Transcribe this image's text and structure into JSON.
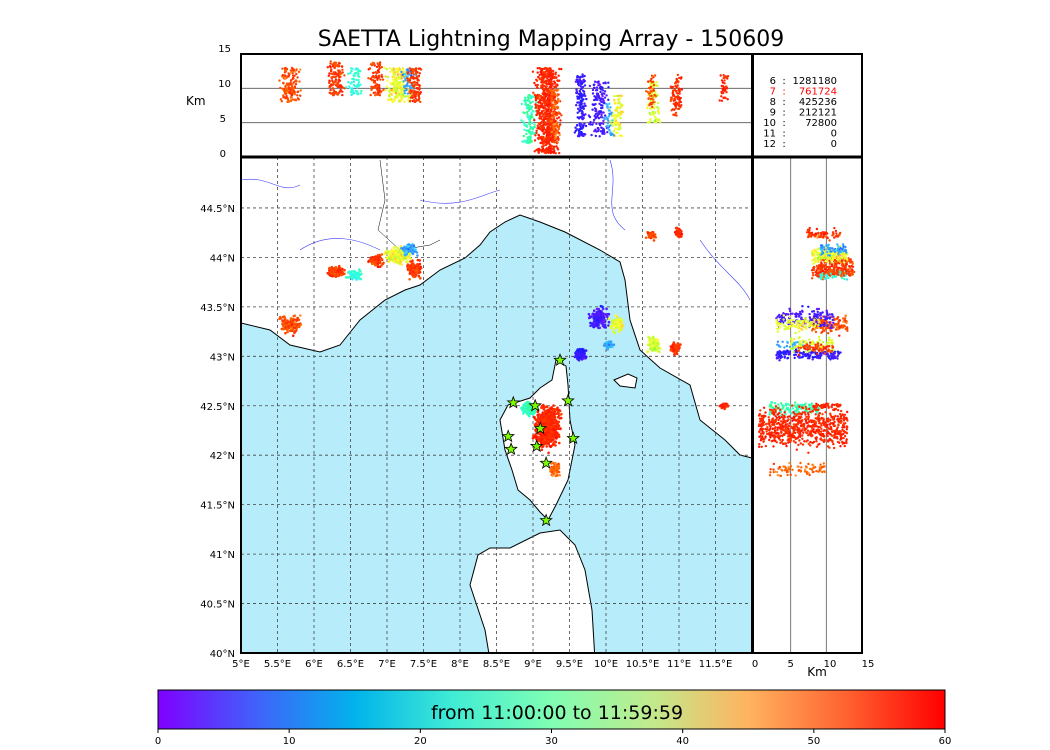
{
  "chart_data": {
    "type": "scatter",
    "title": "SAETTA Lightning Mapping Array - 150609",
    "time_range_label": "from 11:00:00 to 11:59:59",
    "colorbar": {
      "min": 0,
      "max": 60,
      "ticks": [
        "0",
        "10",
        "20",
        "30",
        "40",
        "50",
        "60"
      ]
    },
    "map": {
      "lon_range": [
        5,
        12
      ],
      "lat_range": [
        40,
        45
      ],
      "lon_ticks": [
        {
          "v": 5,
          "l": "5°E"
        },
        {
          "v": 5.5,
          "l": "5.5°E"
        },
        {
          "v": 6,
          "l": "6°E"
        },
        {
          "v": 6.5,
          "l": "6.5°E"
        },
        {
          "v": 7,
          "l": "7°E"
        },
        {
          "v": 7.5,
          "l": "7.5°E"
        },
        {
          "v": 8,
          "l": "8°E"
        },
        {
          "v": 8.5,
          "l": "8.5°E"
        },
        {
          "v": 9,
          "l": "9°E"
        },
        {
          "v": 9.5,
          "l": "9.5°E"
        },
        {
          "v": 10,
          "l": "10°E"
        },
        {
          "v": 10.5,
          "l": "10.5°E"
        },
        {
          "v": 11,
          "l": "11°E"
        },
        {
          "v": 11.5,
          "l": "11.5°E"
        }
      ],
      "lat_ticks": [
        {
          "v": 40,
          "l": "40°N"
        },
        {
          "v": 40.5,
          "l": "40.5°N"
        },
        {
          "v": 41,
          "l": "41°N"
        },
        {
          "v": 41.5,
          "l": "41.5°N"
        },
        {
          "v": 42,
          "l": "42°N"
        },
        {
          "v": 42.5,
          "l": "42.5°N"
        },
        {
          "v": 43,
          "l": "43°N"
        },
        {
          "v": 43.5,
          "l": "43.5°N"
        },
        {
          "v": 44,
          "l": "44°N"
        },
        {
          "v": 44.5,
          "l": "44.5°N"
        }
      ],
      "sea_color": "#b7edfb"
    },
    "altitude_axis": {
      "label": "Km",
      "range": [
        0,
        15
      ],
      "ticks": [
        "0",
        "5",
        "10",
        "15"
      ]
    },
    "station_counts": [
      {
        "n": "6",
        "count": "1281180",
        "highlight": false
      },
      {
        "n": "7",
        "count": "761724",
        "highlight": true
      },
      {
        "n": "8",
        "count": "425236",
        "highlight": false
      },
      {
        "n": "9",
        "count": "212121",
        "highlight": false
      },
      {
        "n": "10",
        "count": "72800",
        "highlight": false
      },
      {
        "n": "11",
        "count": "0",
        "highlight": false
      },
      {
        "n": "12",
        "count": "0",
        "highlight": false
      }
    ],
    "stations": [
      [
        9.37,
        42.96
      ],
      [
        8.73,
        42.53
      ],
      [
        9.03,
        42.5
      ],
      [
        9.48,
        42.55
      ],
      [
        8.66,
        42.19
      ],
      [
        9.1,
        42.27
      ],
      [
        8.7,
        42.06
      ],
      [
        9.05,
        42.09
      ],
      [
        9.55,
        42.17
      ],
      [
        9.18,
        41.92
      ],
      [
        9.18,
        41.34
      ]
    ],
    "clusters": [
      {
        "lon": 5.67,
        "lat": 43.32,
        "slon": 0.12,
        "slat": 0.08,
        "t": 56,
        "dt": 4,
        "alt": [
          8,
          13
        ],
        "n": 150
      },
      {
        "lon": 6.3,
        "lat": 43.85,
        "slon": 0.1,
        "slat": 0.05,
        "t": 57,
        "dt": 3,
        "alt": [
          9,
          14
        ],
        "n": 120
      },
      {
        "lon": 6.55,
        "lat": 43.82,
        "slon": 0.1,
        "slat": 0.05,
        "t": 22,
        "dt": 6,
        "alt": [
          9,
          13
        ],
        "n": 60
      },
      {
        "lon": 6.85,
        "lat": 43.97,
        "slon": 0.1,
        "slat": 0.05,
        "t": 57,
        "dt": 3,
        "alt": [
          9,
          14
        ],
        "n": 90
      },
      {
        "lon": 7.15,
        "lat": 44.02,
        "slon": 0.15,
        "slat": 0.07,
        "t": 46,
        "dt": 8,
        "alt": [
          8,
          13
        ],
        "n": 200
      },
      {
        "lon": 7.3,
        "lat": 44.08,
        "slon": 0.1,
        "slat": 0.05,
        "t": 14,
        "dt": 6,
        "alt": [
          9,
          13
        ],
        "n": 60
      },
      {
        "lon": 7.38,
        "lat": 43.88,
        "slon": 0.08,
        "slat": 0.08,
        "t": 57,
        "dt": 3,
        "alt": [
          8,
          13
        ],
        "n": 120
      },
      {
        "lon": 8.95,
        "lat": 42.47,
        "slon": 0.08,
        "slat": 0.06,
        "t": 25,
        "dt": 6,
        "alt": [
          2,
          9
        ],
        "n": 120
      },
      {
        "lon": 9.2,
        "lat": 42.28,
        "slon": 0.15,
        "slat": 0.18,
        "t": 58,
        "dt": 2,
        "alt": [
          0.5,
          13
        ],
        "n": 700
      },
      {
        "lon": 9.3,
        "lat": 41.85,
        "slon": 0.06,
        "slat": 0.06,
        "t": 55,
        "dt": 3,
        "alt": [
          2,
          10
        ],
        "n": 80
      },
      {
        "lon": 9.65,
        "lat": 43.02,
        "slon": 0.07,
        "slat": 0.05,
        "t": 5,
        "dt": 4,
        "alt": [
          3,
          12
        ],
        "n": 150
      },
      {
        "lon": 9.92,
        "lat": 43.38,
        "slon": 0.12,
        "slat": 0.1,
        "t": 4,
        "dt": 4,
        "alt": [
          3,
          11
        ],
        "n": 140
      },
      {
        "lon": 10.15,
        "lat": 43.32,
        "slon": 0.1,
        "slat": 0.07,
        "t": 46,
        "dt": 6,
        "alt": [
          3,
          9
        ],
        "n": 90
      },
      {
        "lon": 10.05,
        "lat": 43.12,
        "slon": 0.06,
        "slat": 0.04,
        "t": 15,
        "dt": 5,
        "alt": [
          3,
          8
        ],
        "n": 30
      },
      {
        "lon": 10.65,
        "lat": 43.12,
        "slon": 0.07,
        "slat": 0.07,
        "t": 44,
        "dt": 6,
        "alt": [
          5,
          11
        ],
        "n": 80
      },
      {
        "lon": 10.95,
        "lat": 43.08,
        "slon": 0.06,
        "slat": 0.05,
        "t": 57,
        "dt": 3,
        "alt": [
          6,
          11
        ],
        "n": 60
      },
      {
        "lon": 10.62,
        "lat": 44.22,
        "slon": 0.06,
        "slat": 0.04,
        "t": 56,
        "dt": 4,
        "alt": [
          7,
          12
        ],
        "n": 40
      },
      {
        "lon": 11.0,
        "lat": 44.25,
        "slon": 0.05,
        "slat": 0.04,
        "t": 58,
        "dt": 2,
        "alt": [
          7,
          12
        ],
        "n": 30
      },
      {
        "lon": 11.62,
        "lat": 42.5,
        "slon": 0.05,
        "slat": 0.03,
        "t": 58,
        "dt": 2,
        "alt": [
          8,
          12
        ],
        "n": 40
      }
    ]
  }
}
